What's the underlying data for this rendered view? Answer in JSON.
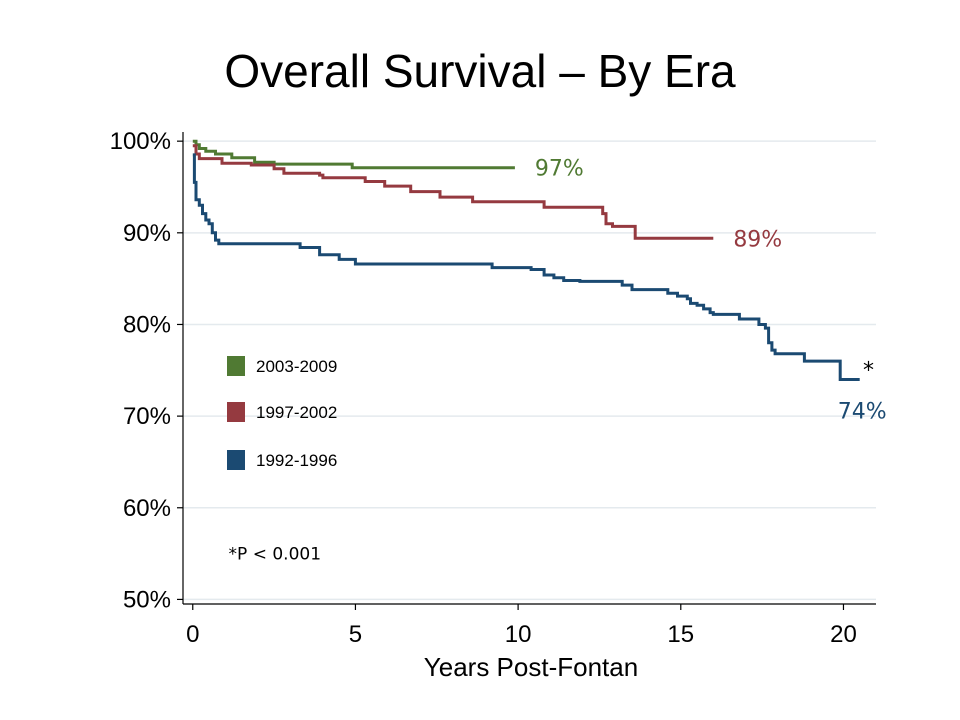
{
  "chart_data": {
    "type": "line",
    "title": "Overall Survival – By Era",
    "xlabel": "Years Post-Fontan",
    "ylabel": "",
    "xlim": [
      -0.3,
      21
    ],
    "ylim": [
      49.5,
      101
    ],
    "x_ticks": [
      0,
      5,
      10,
      15,
      20
    ],
    "y_ticks": [
      {
        "value": 100,
        "label": "100%"
      },
      {
        "value": 90,
        "label": "90%"
      },
      {
        "value": 80,
        "label": "80%"
      },
      {
        "value": 70,
        "label": "70%"
      },
      {
        "value": 60,
        "label": "60%"
      },
      {
        "value": 50,
        "label": "50%"
      }
    ],
    "grid": "horizontal",
    "legend_position": "middle-left",
    "series": [
      {
        "name": "2003-2009",
        "color": "#507a33",
        "end_label": "97%",
        "points": [
          [
            0,
            100
          ],
          [
            0.1,
            99.6
          ],
          [
            0.2,
            99.2
          ],
          [
            0.4,
            98.9
          ],
          [
            0.7,
            98.6
          ],
          [
            1.2,
            98.2
          ],
          [
            1.9,
            97.7
          ],
          [
            2.5,
            97.5
          ],
          [
            4.9,
            97.1
          ],
          [
            9.9,
            97.1
          ]
        ]
      },
      {
        "name": "1997-2002",
        "color": "#953a40",
        "end_label": "89%",
        "points": [
          [
            0,
            99.5
          ],
          [
            0.1,
            98.6
          ],
          [
            0.2,
            98.1
          ],
          [
            0.9,
            97.6
          ],
          [
            1.8,
            97.4
          ],
          [
            2.5,
            97.0
          ],
          [
            2.8,
            96.5
          ],
          [
            3.9,
            96.3
          ],
          [
            4.0,
            96.0
          ],
          [
            5.3,
            95.6
          ],
          [
            5.9,
            95.1
          ],
          [
            6.7,
            94.5
          ],
          [
            7.6,
            93.9
          ],
          [
            8.6,
            93.4
          ],
          [
            10.8,
            92.8
          ],
          [
            12.6,
            92.1
          ],
          [
            12.7,
            91.0
          ],
          [
            12.9,
            90.7
          ],
          [
            13.6,
            89.4
          ],
          [
            16.0,
            89.4
          ]
        ]
      },
      {
        "name": "1992-1996",
        "color": "#1b4a72",
        "end_label": "74%",
        "points": [
          [
            0,
            98.5
          ],
          [
            0.05,
            95.5
          ],
          [
            0.1,
            93.6
          ],
          [
            0.2,
            93.0
          ],
          [
            0.3,
            92.1
          ],
          [
            0.4,
            91.4
          ],
          [
            0.5,
            91.0
          ],
          [
            0.6,
            90.0
          ],
          [
            0.7,
            89.2
          ],
          [
            0.8,
            88.8
          ],
          [
            3.3,
            88.4
          ],
          [
            3.9,
            87.6
          ],
          [
            4.5,
            87.1
          ],
          [
            5.0,
            86.6
          ],
          [
            9.2,
            86.2
          ],
          [
            10.4,
            86.0
          ],
          [
            10.8,
            85.4
          ],
          [
            11.1,
            85.1
          ],
          [
            11.4,
            84.8
          ],
          [
            11.9,
            84.7
          ],
          [
            13.2,
            84.3
          ],
          [
            13.5,
            83.8
          ],
          [
            14.6,
            83.4
          ],
          [
            14.9,
            83.1
          ],
          [
            15.2,
            82.8
          ],
          [
            15.3,
            82.3
          ],
          [
            15.5,
            82.1
          ],
          [
            15.7,
            81.7
          ],
          [
            15.9,
            81.3
          ],
          [
            16.0,
            81.1
          ],
          [
            16.8,
            80.6
          ],
          [
            17.4,
            80.0
          ],
          [
            17.6,
            79.6
          ],
          [
            17.7,
            78.0
          ],
          [
            17.8,
            77.2
          ],
          [
            17.9,
            76.8
          ],
          [
            18.8,
            76.0
          ],
          [
            19.9,
            74.0
          ],
          [
            20.5,
            74.0
          ]
        ]
      }
    ],
    "annotations": [
      {
        "text": "*",
        "x": 20.6,
        "y": 75.5
      },
      {
        "text": "*P < 0.001",
        "x": 1.1,
        "y": 55.0
      }
    ]
  }
}
